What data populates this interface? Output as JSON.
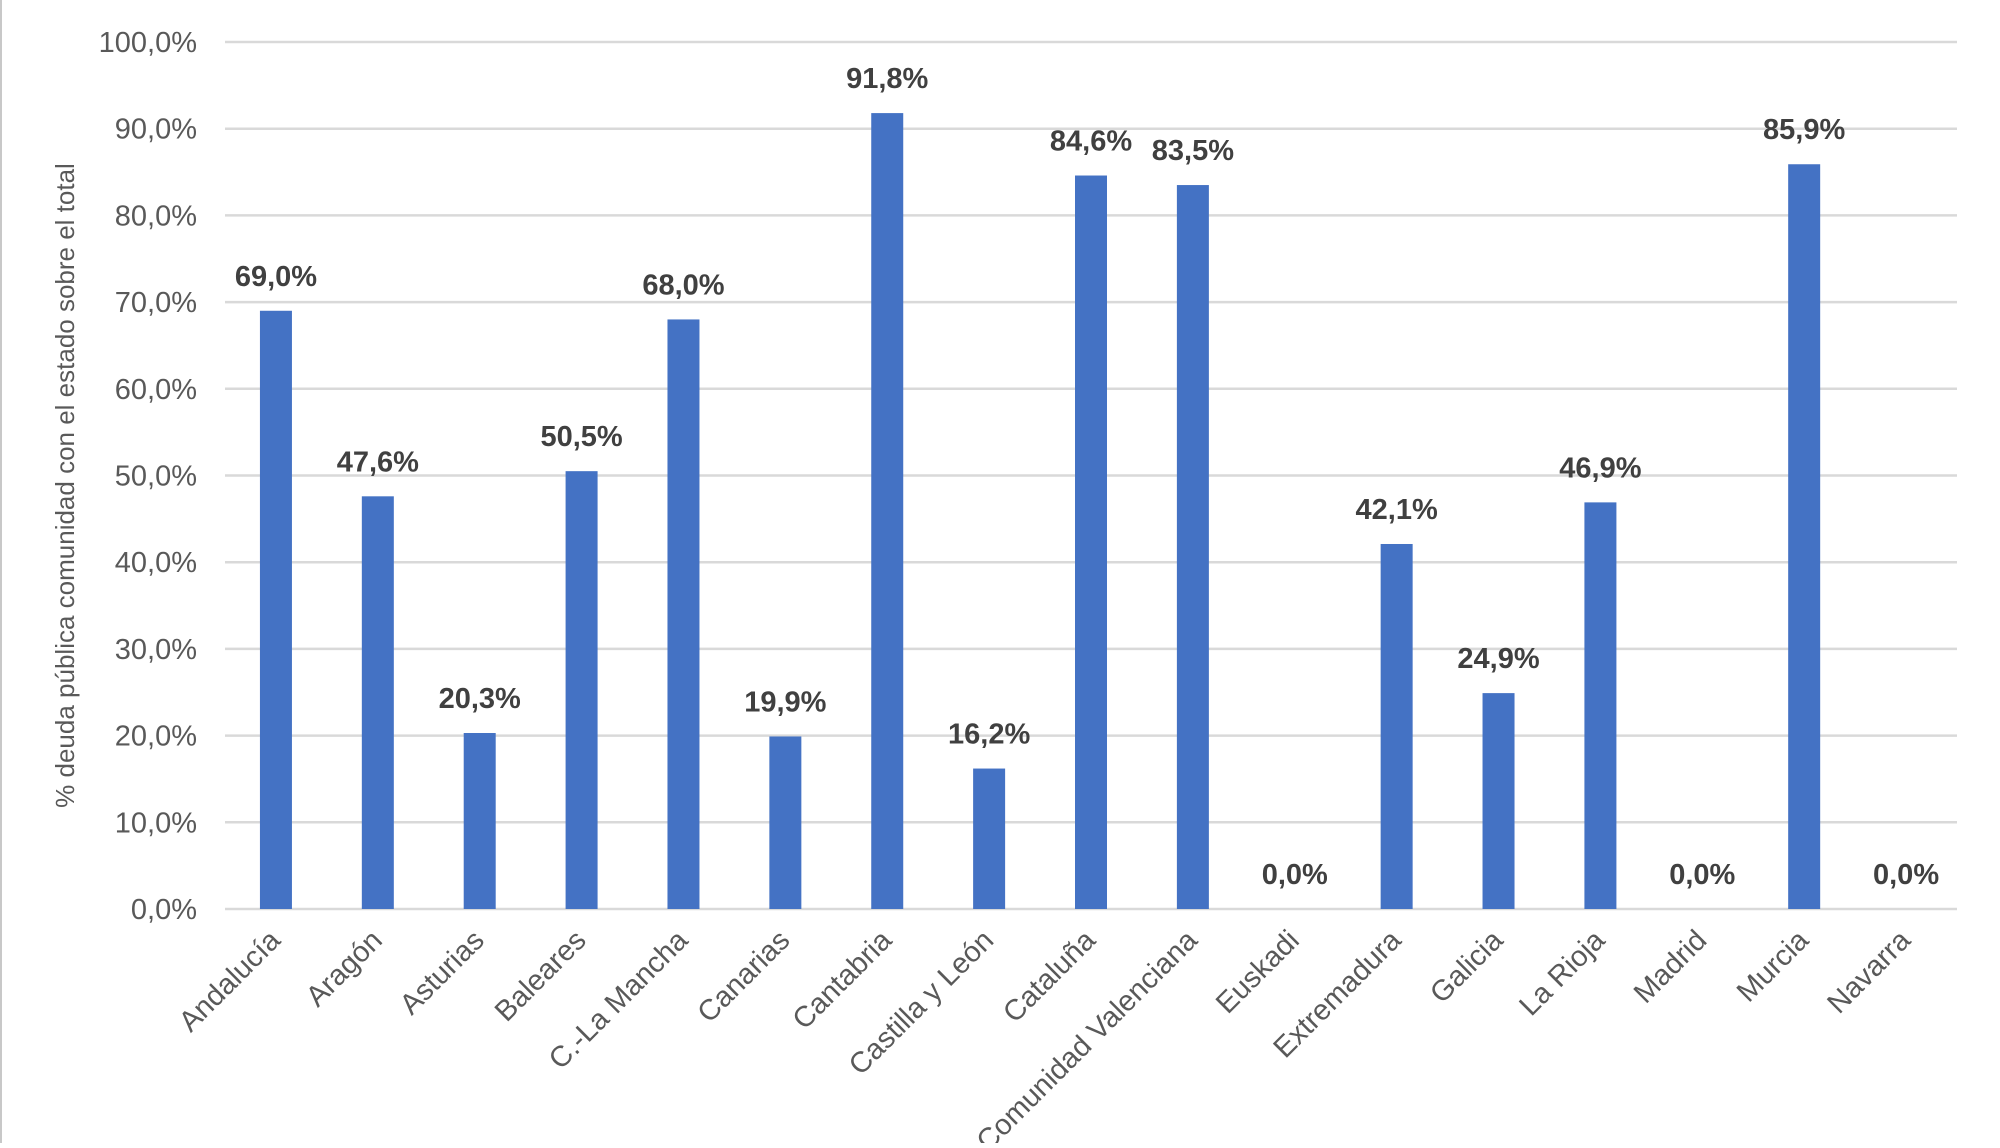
{
  "chart_data": {
    "type": "bar",
    "title": "",
    "xlabel": "",
    "ylabel": "% deuda pública comunidad con el estado sobre el total",
    "ylim": [
      0,
      100
    ],
    "y_ticks": [
      "0,0%",
      "10,0%",
      "20,0%",
      "30,0%",
      "40,0%",
      "50,0%",
      "60,0%",
      "70,0%",
      "80,0%",
      "90,0%",
      "100,0%"
    ],
    "grid": true,
    "bar_color": "#4472C4",
    "categories": [
      "Andalucía",
      "Aragón",
      "Asturias",
      "Baleares",
      "C.-La Mancha",
      "Canarias",
      "Cantabria",
      "Castilla y León",
      "Cataluña",
      "Comunidad Valenciana",
      "Euskadi",
      "Extremadura",
      "Galicia",
      "La Rioja",
      "Madrid",
      "Murcia",
      "Navarra"
    ],
    "values": [
      69.0,
      47.6,
      20.3,
      50.5,
      68.0,
      19.9,
      91.8,
      16.2,
      84.6,
      83.5,
      0.0,
      42.1,
      24.9,
      46.9,
      0.0,
      85.9,
      0.0
    ],
    "data_labels": [
      "69,0%",
      "47,6%",
      "20,3%",
      "50,5%",
      "68,0%",
      "19,9%",
      "91,8%",
      "16,2%",
      "84,6%",
      "83,5%",
      "0,0%",
      "42,1%",
      "24,9%",
      "46,9%",
      "0,0%",
      "85,9%",
      "0,0%"
    ]
  }
}
